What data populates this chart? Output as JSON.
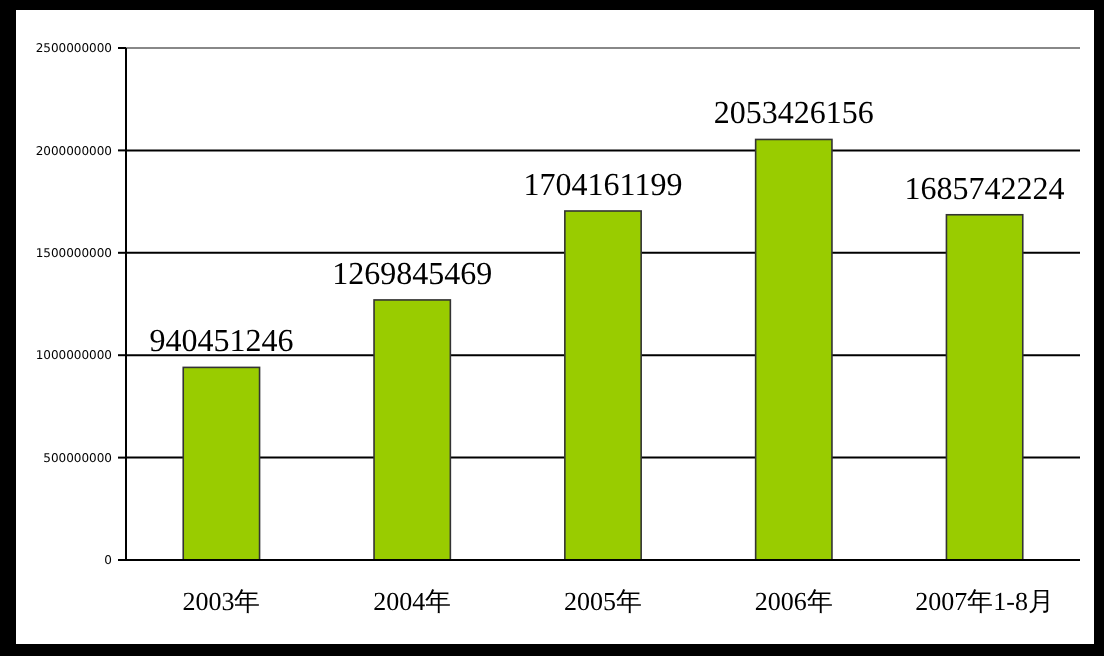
{
  "chart_data": {
    "type": "bar",
    "categories": [
      "2003年",
      "2004年",
      "2005年",
      "2006年",
      "2007年1-8月"
    ],
    "values": [
      940451246,
      1269845469,
      1704161199,
      2053426156,
      1685742224
    ],
    "color": "#99cc00",
    "ylim": [
      0,
      2500000000
    ],
    "yticks": [
      0,
      500000000,
      1000000000,
      1500000000,
      2000000000,
      2500000000
    ],
    "grid": "y",
    "data_labels": true
  }
}
